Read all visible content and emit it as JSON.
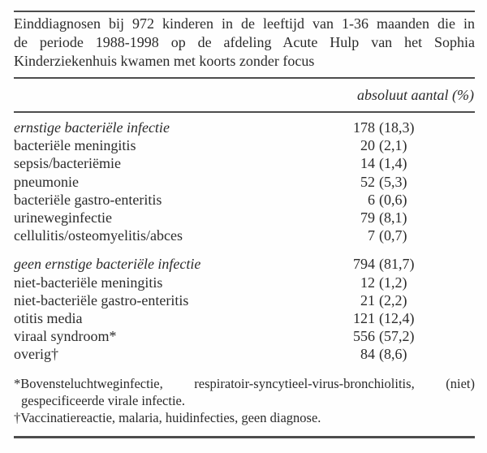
{
  "table": {
    "caption_lines": [
      "Einddiagnosen bij 972 kinderen in de leeftijd van 1-36 maanden die in",
      "de periode 1988-1998 op de afdeling Acute Hulp van het Sophia",
      "Kinderziekenhuis kwamen met koorts zonder focus"
    ],
    "caption_full": "Einddiagnosen bij 972 kinderen in de leeftijd van 1-36 maanden die in de periode 1988-1998 op de afdeling Acute Hulp van het Sophia Kinderziekenhuis kwamen met koorts zonder focus",
    "column_header": "absoluut aantal (%)",
    "sections": [
      {
        "rows": [
          {
            "label": "ernstige bacteriële infectie",
            "italic": true,
            "count": "178",
            "pct": "(18,3)"
          },
          {
            "label": "bacteriële meningitis",
            "italic": false,
            "count": "20",
            "pct": "(2,1)"
          },
          {
            "label": "sepsis/bacteriëmie",
            "italic": false,
            "count": "14",
            "pct": "(1,4)"
          },
          {
            "label": "pneumonie",
            "italic": false,
            "count": "52",
            "pct": "(5,3)"
          },
          {
            "label": "bacteriële gastro-enteritis",
            "italic": false,
            "count": "6",
            "pct": "(0,6)"
          },
          {
            "label": "urineweginfectie",
            "italic": false,
            "count": "79",
            "pct": "(8,1)"
          },
          {
            "label": "cellulitis/osteomyelitis/abces",
            "italic": false,
            "count": "7",
            "pct": "(0,7)"
          }
        ]
      },
      {
        "rows": [
          {
            "label": "geen ernstige bacteriële infectie",
            "italic": true,
            "count": "794",
            "pct": "(81,7)"
          },
          {
            "label": "niet-bacteriële meningitis",
            "italic": false,
            "count": "12",
            "pct": "(1,2)"
          },
          {
            "label": "niet-bacteriële gastro-enteritis",
            "italic": false,
            "count": "21",
            "pct": "(2,2)"
          },
          {
            "label": "otitis media",
            "italic": false,
            "count": "121",
            "pct": "(12,4)"
          },
          {
            "label": "viraal syndroom*",
            "italic": false,
            "count": "556",
            "pct": "(57,2)"
          },
          {
            "label": "overig†",
            "italic": false,
            "count": "84",
            "pct": "(8,6)"
          }
        ]
      }
    ],
    "footnotes": {
      "asterisk_line_1": "*Bovensteluchtweginfectie, respiratoir-syncytieel-virus-bronchiolitis, (niet)",
      "asterisk_line_2": "gespecificeerde virale infectie.",
      "asterisk_full": "*Bovensteluchtweginfectie, respiratoir-syncytieel-virus-bronchiolitis, (niet) gespecificeerde virale infectie.",
      "dagger": "†Vaccinatiereactie, malaria, huidinfecties, geen diagnose."
    }
  }
}
